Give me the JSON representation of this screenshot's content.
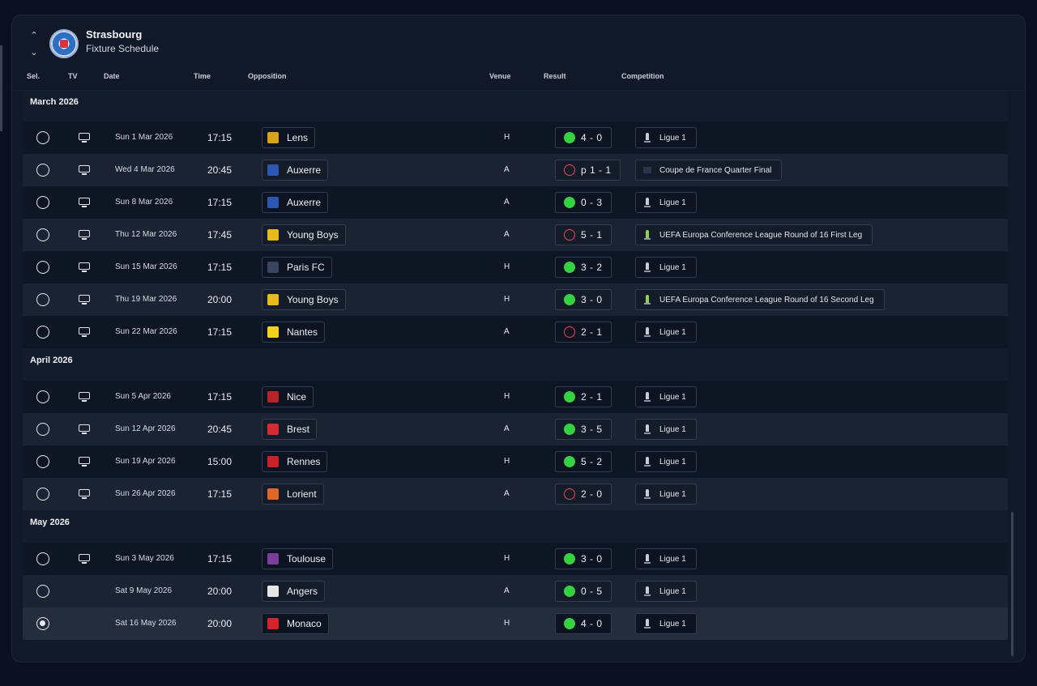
{
  "header": {
    "club": "Strasbourg",
    "subtitle": "Fixture Schedule"
  },
  "columns": {
    "sel": "Sel.",
    "tv": "TV",
    "date": "Date",
    "time": "Time",
    "opposition": "Opposition",
    "venue": "Venue",
    "result": "Result",
    "competition": "Competition"
  },
  "colors": {
    "win": "#34d23f",
    "loss": "#e5484d",
    "panel": "#111827"
  },
  "months": [
    {
      "label": "March 2026",
      "fixtures": [
        {
          "date": "Sun 1 Mar 2026",
          "time": "17:15",
          "opponent": "Lens",
          "crest": "#d8a21c",
          "venue": "H",
          "result": "4 - 0",
          "outcome": "win",
          "competition": "Ligue 1",
          "comp_icon": "ligue1",
          "tv": true
        },
        {
          "date": "Wed 4 Mar 2026",
          "time": "20:45",
          "opponent": "Auxerre",
          "crest": "#2d56b3",
          "venue": "A",
          "result": "p 1 - 1",
          "outcome": "loss",
          "competition": "Coupe de France Quarter Final",
          "comp_icon": "cup",
          "tv": true
        },
        {
          "date": "Sun 8 Mar 2026",
          "time": "17:15",
          "opponent": "Auxerre",
          "crest": "#2d56b3",
          "venue": "A",
          "result": "0 - 3",
          "outcome": "win",
          "competition": "Ligue 1",
          "comp_icon": "ligue1",
          "tv": true
        },
        {
          "date": "Thu 12 Mar 2026",
          "time": "17:45",
          "opponent": "Young Boys",
          "crest": "#e8b91c",
          "venue": "A",
          "result": "5 - 1",
          "outcome": "loss",
          "competition": "UEFA Europa Conference League Round of 16  First Leg",
          "comp_icon": "uecl",
          "tv": true
        },
        {
          "date": "Sun 15 Mar 2026",
          "time": "17:15",
          "opponent": "Paris FC",
          "crest": "#3a4460",
          "venue": "H",
          "result": "3 - 2",
          "outcome": "win",
          "competition": "Ligue 1",
          "comp_icon": "ligue1",
          "tv": true
        },
        {
          "date": "Thu 19 Mar 2026",
          "time": "20:00",
          "opponent": "Young Boys",
          "crest": "#e8b91c",
          "venue": "H",
          "result": "3 - 0",
          "outcome": "win",
          "competition": "UEFA Europa Conference League Round of 16  Second Leg",
          "comp_icon": "uecl",
          "tv": true
        },
        {
          "date": "Sun 22 Mar 2026",
          "time": "17:15",
          "opponent": "Nantes",
          "crest": "#f2d21b",
          "venue": "A",
          "result": "2 - 1",
          "outcome": "loss",
          "competition": "Ligue 1",
          "comp_icon": "ligue1",
          "tv": true
        }
      ]
    },
    {
      "label": "April 2026",
      "fixtures": [
        {
          "date": "Sun 5 Apr 2026",
          "time": "17:15",
          "opponent": "Nice",
          "crest": "#b7252b",
          "venue": "H",
          "result": "2 - 1",
          "outcome": "win",
          "competition": "Ligue 1",
          "comp_icon": "ligue1",
          "tv": true
        },
        {
          "date": "Sun 12 Apr 2026",
          "time": "20:45",
          "opponent": "Brest",
          "crest": "#d52b33",
          "venue": "A",
          "result": "3 - 5",
          "outcome": "win",
          "competition": "Ligue 1",
          "comp_icon": "ligue1",
          "tv": true
        },
        {
          "date": "Sun 19 Apr 2026",
          "time": "15:00",
          "opponent": "Rennes",
          "crest": "#c8232b",
          "venue": "H",
          "result": "5 - 2",
          "outcome": "win",
          "competition": "Ligue 1",
          "comp_icon": "ligue1",
          "tv": true
        },
        {
          "date": "Sun 26 Apr 2026",
          "time": "17:15",
          "opponent": "Lorient",
          "crest": "#e0662a",
          "venue": "A",
          "result": "2 - 0",
          "outcome": "loss",
          "competition": "Ligue 1",
          "comp_icon": "ligue1",
          "tv": true
        }
      ]
    },
    {
      "label": "May 2026",
      "fixtures": [
        {
          "date": "Sun 3 May 2026",
          "time": "17:15",
          "opponent": "Toulouse",
          "crest": "#7a3f9a",
          "venue": "H",
          "result": "3 - 0",
          "outcome": "win",
          "competition": "Ligue 1",
          "comp_icon": "ligue1",
          "tv": true
        },
        {
          "date": "Sat 9 May 2026",
          "time": "20:00",
          "opponent": "Angers",
          "crest": "#e6e6e6",
          "venue": "A",
          "result": "0 - 5",
          "outcome": "win",
          "competition": "Ligue 1",
          "comp_icon": "ligue1",
          "tv": false
        },
        {
          "date": "Sat 16 May 2026",
          "time": "20:00",
          "opponent": "Monaco",
          "crest": "#d3242c",
          "venue": "H",
          "result": "4 - 0",
          "outcome": "win",
          "competition": "Ligue 1",
          "comp_icon": "ligue1",
          "tv": false,
          "selected": true
        }
      ]
    }
  ]
}
